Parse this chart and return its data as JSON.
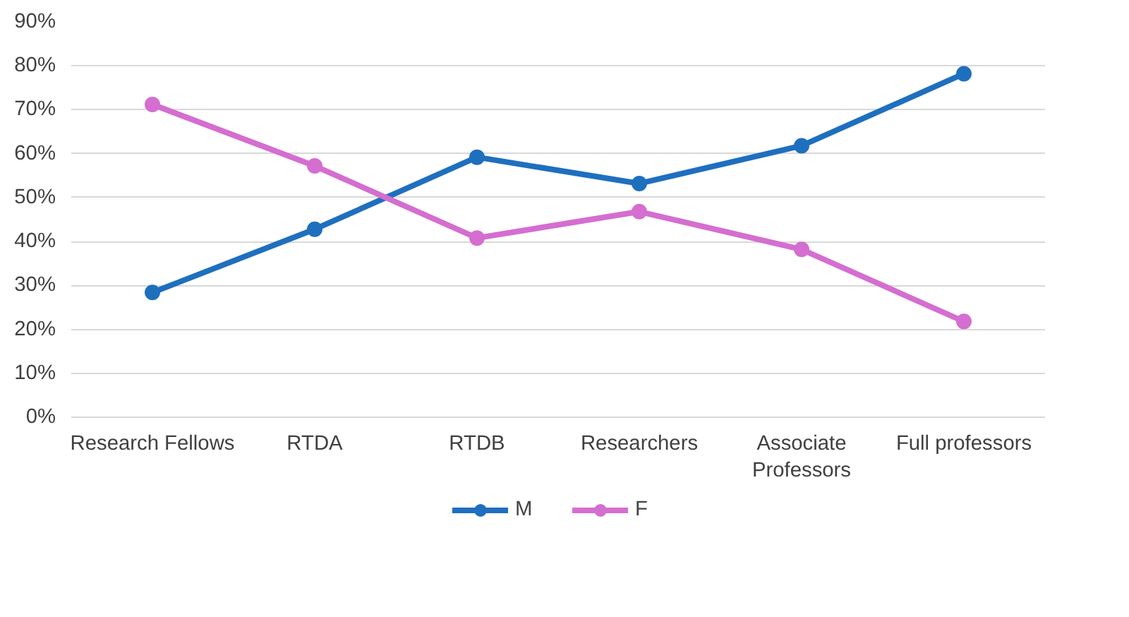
{
  "chart_data": {
    "type": "line",
    "categories": [
      "Research Fellows",
      "RTDA",
      "RTDB",
      "Researchers",
      "Associate Professors",
      "Full professors"
    ],
    "series": [
      {
        "name": "M",
        "color": "#1f6fbf",
        "values": [
          28.4,
          42.8,
          59.2,
          53.2,
          61.8,
          78.2
        ]
      },
      {
        "name": "F",
        "color": "#d46ed0",
        "values": [
          71.2,
          57.2,
          40.8,
          46.8,
          38.2,
          21.8
        ]
      }
    ],
    "ylim": [
      0,
      90
    ],
    "yticks": [
      {
        "value": 0,
        "label": "0%"
      },
      {
        "value": 10,
        "label": "10%"
      },
      {
        "value": 20,
        "label": "20%"
      },
      {
        "value": 30,
        "label": "30%"
      },
      {
        "value": 40,
        "label": "40%"
      },
      {
        "value": 50,
        "label": "50%"
      },
      {
        "value": 60,
        "label": "60%"
      },
      {
        "value": 70,
        "label": "70%"
      },
      {
        "value": 80,
        "label": "80%"
      },
      {
        "value": 90,
        "label": "90%"
      }
    ],
    "grid": "y",
    "legend": "bottom",
    "marker": "circle",
    "line_style": "solid"
  }
}
